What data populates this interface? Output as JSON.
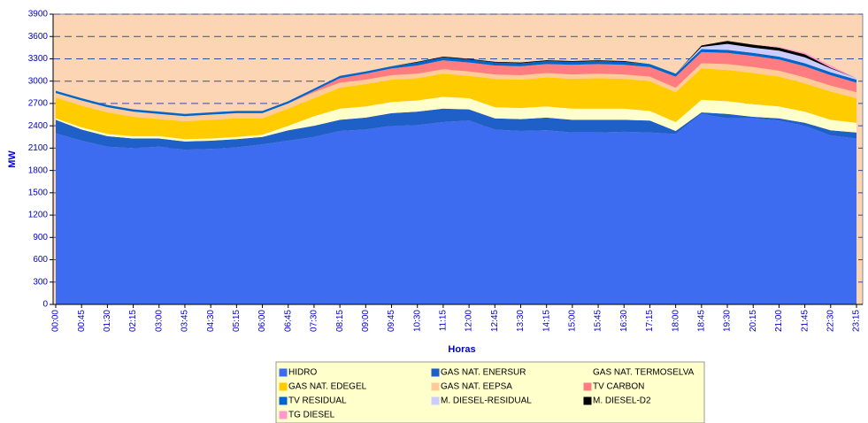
{
  "chart_data": {
    "type": "stacked_area",
    "xlabel": "Horas",
    "ylabel": "MW",
    "categories": [
      "00:00",
      "00:45",
      "01:30",
      "02:15",
      "03:00",
      "03:45",
      "04:30",
      "05:15",
      "06:00",
      "06:45",
      "07:30",
      "08:15",
      "09:00",
      "09:45",
      "10:30",
      "11:15",
      "12:00",
      "12:45",
      "13:30",
      "14:15",
      "15:00",
      "15:45",
      "16:30",
      "17:15",
      "18:00",
      "18:45",
      "19:30",
      "20:15",
      "21:00",
      "21:45",
      "22:30",
      "23:15"
    ],
    "ylim": [
      0,
      3900
    ],
    "yticks": [
      0,
      300,
      600,
      900,
      1200,
      1500,
      1800,
      2100,
      2400,
      2700,
      3000,
      3300,
      3600,
      3900
    ],
    "grid": true,
    "plot_background": "#fcd5b4",
    "series": [
      {
        "name": "HIDRO",
        "color": "#3d6cf0",
        "values": [
          2300,
          2200,
          2120,
          2100,
          2120,
          2080,
          2090,
          2110,
          2150,
          2200,
          2250,
          2330,
          2350,
          2400,
          2410,
          2450,
          2470,
          2350,
          2330,
          2340,
          2310,
          2310,
          2320,
          2310,
          2290,
          2560,
          2500,
          2500,
          2470,
          2400,
          2270,
          2230
        ]
      },
      {
        "name": "GAS NAT. ENERSUR",
        "color": "#1f5fc8",
        "values": [
          180,
          150,
          140,
          130,
          110,
          110,
          110,
          110,
          100,
          140,
          150,
          150,
          160,
          170,
          180,
          180,
          150,
          150,
          160,
          170,
          170,
          170,
          160,
          160,
          40,
          20,
          60,
          20,
          30,
          40,
          70,
          80
        ]
      },
      {
        "name": "GAS NAT. TERMOSELVA",
        "color": "#ffffcc",
        "values": [
          20,
          30,
          30,
          30,
          30,
          30,
          30,
          30,
          30,
          60,
          130,
          150,
          150,
          150,
          150,
          160,
          150,
          150,
          150,
          150,
          150,
          150,
          150,
          130,
          120,
          170,
          170,
          170,
          160,
          150,
          140,
          130
        ]
      },
      {
        "name": "GAS NAT. EDEGEL",
        "color": "#ffcc00",
        "values": [
          280,
          290,
          290,
          260,
          230,
          240,
          250,
          250,
          220,
          230,
          240,
          280,
          300,
          300,
          300,
          310,
          300,
          380,
          380,
          390,
          400,
          410,
          400,
          400,
          400,
          420,
          420,
          420,
          400,
          380,
          380,
          330
        ]
      },
      {
        "name": "GAS NAT. EEPSA",
        "color": "#ffcc99",
        "values": [
          60,
          70,
          70,
          70,
          70,
          70,
          70,
          70,
          70,
          70,
          80,
          70,
          60,
          60,
          60,
          60,
          60,
          60,
          60,
          60,
          60,
          60,
          60,
          60,
          60,
          70,
          80,
          80,
          80,
          80,
          80,
          80
        ]
      },
      {
        "name": "TV CARBON",
        "color": "#ff7c80",
        "values": [
          0,
          0,
          0,
          0,
          0,
          0,
          0,
          0,
          0,
          0,
          20,
          60,
          80,
          90,
          110,
          120,
          120,
          120,
          120,
          120,
          130,
          130,
          130,
          130,
          150,
          150,
          150,
          150,
          150,
          150,
          140,
          130
        ]
      },
      {
        "name": "TV RESIDUAL",
        "color": "#0066cc",
        "values": [
          30,
          30,
          30,
          30,
          30,
          30,
          30,
          30,
          30,
          30,
          30,
          30,
          30,
          30,
          40,
          40,
          40,
          40,
          40,
          40,
          40,
          40,
          40,
          40,
          40,
          40,
          40,
          40,
          40,
          40,
          40,
          40
        ]
      },
      {
        "name": "M. DIESEL-RESIDUAL",
        "color": "#ccccff",
        "values": [
          0,
          0,
          0,
          0,
          0,
          0,
          0,
          0,
          0,
          0,
          0,
          0,
          0,
          0,
          0,
          0,
          0,
          0,
          0,
          0,
          0,
          0,
          0,
          0,
          0,
          30,
          80,
          70,
          80,
          80,
          50,
          20
        ]
      },
      {
        "name": "M. DIESEL-D2",
        "color": "#000000",
        "values": [
          0,
          0,
          0,
          0,
          0,
          0,
          0,
          0,
          0,
          0,
          0,
          0,
          0,
          0,
          10,
          10,
          10,
          10,
          10,
          10,
          10,
          10,
          10,
          0,
          0,
          20,
          40,
          40,
          40,
          40,
          10,
          0
        ]
      },
      {
        "name": "TG DIESEL",
        "color": "#ff99cc",
        "values": [
          0,
          0,
          0,
          0,
          0,
          0,
          0,
          0,
          0,
          0,
          0,
          0,
          0,
          0,
          0,
          0,
          0,
          0,
          0,
          0,
          0,
          0,
          0,
          0,
          0,
          0,
          0,
          0,
          10,
          20,
          30,
          0
        ]
      }
    ]
  }
}
